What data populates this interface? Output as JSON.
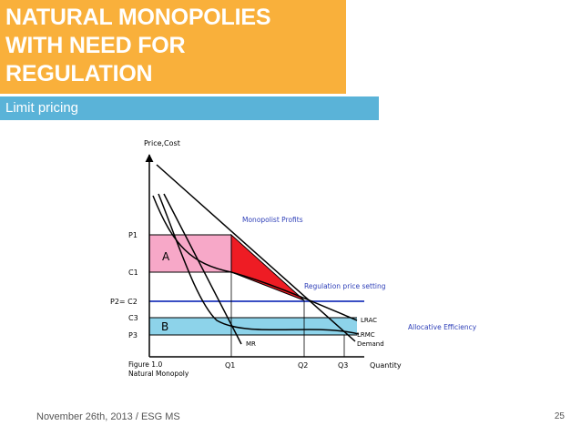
{
  "slide": {
    "title_lines": [
      "NATURAL MONOPOLIES",
      "WITH NEED FOR",
      "REGULATION"
    ],
    "subtitle": "Limit pricing",
    "footer": "November 26th, 2013 / ESG MS",
    "page_number": "25"
  },
  "colors": {
    "title_bg": "#f9b03b",
    "subtitle_bg": "#5ab3d8",
    "region_a": "#f7a8c8",
    "region_b": "#8dd3ea",
    "profit_triangle": "#ee1c24",
    "regulation_line": "#3b4fc4",
    "annotation_blue": "#2e3fb8"
  },
  "figure": {
    "y_axis_label": "Price,Cost",
    "x_axis_label": "Quantity",
    "caption_line1": "Figure 1.0",
    "caption_line2": "Natural Monopoly",
    "y_ticks": [
      "P1",
      "C1",
      "P2= C2",
      "C3",
      "P3"
    ],
    "x_ticks": [
      "Q1",
      "Q2",
      "Q3"
    ],
    "region_labels": [
      "A",
      "B"
    ],
    "curve_labels": [
      "MR",
      "LRAC",
      "LRMC",
      "Demand"
    ],
    "annotations": [
      "Monopolist Profits",
      "Regulation price setting",
      "Allocative Efficiency"
    ]
  }
}
